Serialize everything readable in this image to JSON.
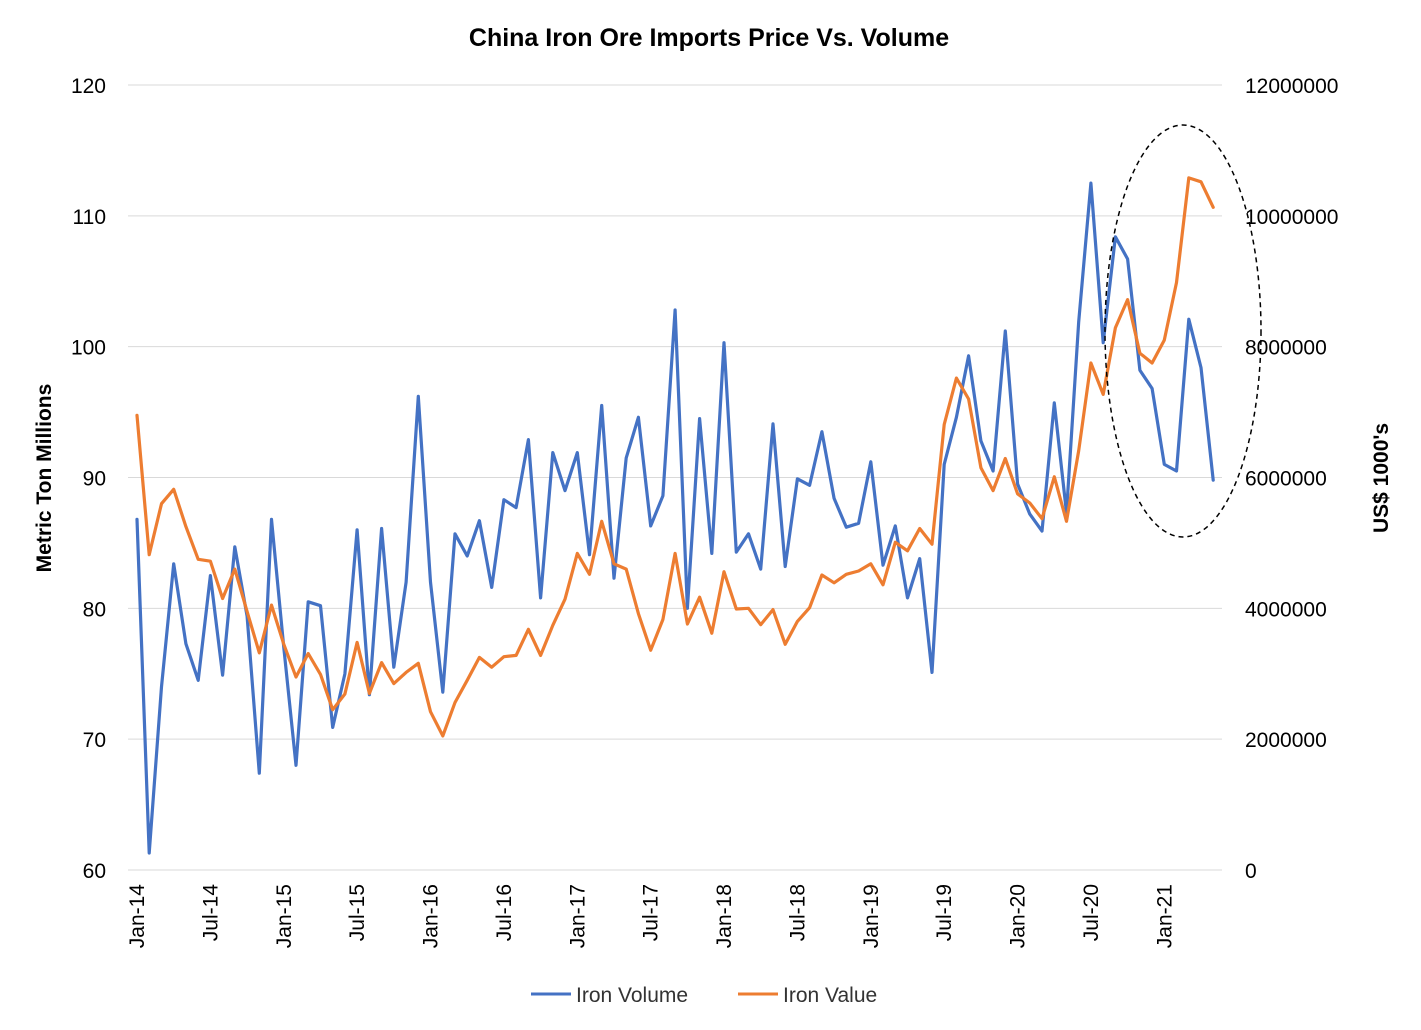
{
  "chart_data": {
    "type": "line",
    "title": "China Iron Ore Imports Price Vs. Volume",
    "ylabel": "Metric Ton Millions",
    "y2label": "US$ 1000's",
    "ylim": [
      60,
      120
    ],
    "y2lim": [
      0,
      12000000
    ],
    "yticks": [
      60,
      70,
      80,
      90,
      100,
      110,
      120
    ],
    "y2ticks": [
      0,
      2000000,
      4000000,
      6000000,
      8000000,
      10000000,
      12000000
    ],
    "xtick_labels": [
      "Jan-14",
      "Jul-14",
      "Jan-15",
      "Jul-15",
      "Jan-16",
      "Jul-16",
      "Jan-17",
      "Jul-17",
      "Jan-18",
      "Jul-18",
      "Jan-19",
      "Jul-19",
      "Jan-20",
      "Jul-20",
      "Jan-21"
    ],
    "legend_position": "bottom",
    "grid": true,
    "series": [
      {
        "name": "Iron Volume",
        "axis": "left",
        "color": "#4472C4",
        "values": [
          86.8,
          61.3,
          74.0,
          83.4,
          77.3,
          74.5,
          82.5,
          74.9,
          84.7,
          79.4,
          67.4,
          86.8,
          77.0,
          68.0,
          80.5,
          80.2,
          70.9,
          75.0,
          86.0,
          73.4,
          86.1,
          75.5,
          82.0,
          96.2,
          82.0,
          73.6,
          85.7,
          84.0,
          86.7,
          81.6,
          88.3,
          87.7,
          92.9,
          80.8,
          91.9,
          89.0,
          91.9,
          84.1,
          95.5,
          82.3,
          91.5,
          94.6,
          86.3,
          88.6,
          102.8,
          80.0,
          94.5,
          84.2,
          100.3,
          84.3,
          85.7,
          83.0,
          94.1,
          83.2,
          89.9,
          89.4,
          93.5,
          88.4,
          86.2,
          86.5,
          91.2,
          83.3,
          86.3,
          80.8,
          83.8,
          75.1,
          91.0,
          94.6,
          99.3,
          92.8,
          90.5,
          101.2,
          89.5,
          87.2,
          85.9,
          95.7,
          87.3,
          101.9,
          112.5,
          100.3,
          108.4,
          106.7,
          98.2,
          96.8,
          91.0,
          90.5,
          102.1,
          98.4,
          89.8
        ]
      },
      {
        "name": "Iron Value",
        "axis": "right",
        "color": "#ED7D31",
        "values": [
          6950000,
          4820000,
          5600000,
          5820000,
          5250000,
          4750000,
          4720000,
          4150000,
          4600000,
          3950000,
          3320000,
          4050000,
          3450000,
          2950000,
          3310000,
          2990000,
          2450000,
          2690000,
          3480000,
          2700000,
          3170000,
          2850000,
          3020000,
          3160000,
          2420000,
          2050000,
          2560000,
          2900000,
          3250000,
          3100000,
          3260000,
          3280000,
          3680000,
          3280000,
          3740000,
          4140000,
          4840000,
          4520000,
          5330000,
          4680000,
          4600000,
          3920000,
          3360000,
          3830000,
          4840000,
          3760000,
          4170000,
          3620000,
          4560000,
          3990000,
          4000000,
          3750000,
          3980000,
          3450000,
          3800000,
          4010000,
          4510000,
          4390000,
          4520000,
          4570000,
          4680000,
          4360000,
          5010000,
          4880000,
          5220000,
          4980000,
          6810000,
          7520000,
          7200000,
          6150000,
          5800000,
          6290000,
          5750000,
          5610000,
          5370000,
          6010000,
          5330000,
          6410000,
          7750000,
          7270000,
          8290000,
          8720000,
          7900000,
          7750000,
          8100000,
          8980000,
          10580000,
          10520000,
          10130000
        ]
      }
    ]
  },
  "legend": {
    "volume_label": "Iron Volume",
    "value_label": "Iron Value"
  }
}
